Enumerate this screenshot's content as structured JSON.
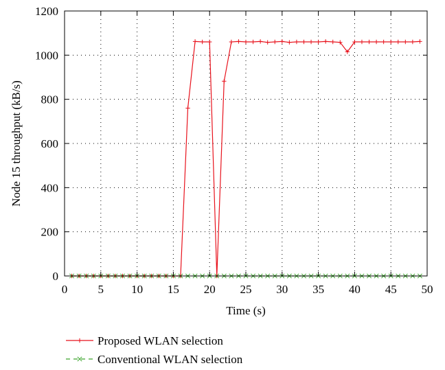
{
  "chart_data": {
    "type": "line",
    "xlabel": "Time (s)",
    "ylabel": "Node 15 throughput (kB/s)",
    "xlim": [
      0,
      50
    ],
    "ylim": [
      0,
      1200
    ],
    "xticks": [
      0,
      5,
      10,
      15,
      20,
      25,
      30,
      35,
      40,
      45,
      50
    ],
    "yticks": [
      0,
      200,
      400,
      600,
      800,
      1000,
      1200
    ],
    "grid": "dotted",
    "legend_position": "below",
    "x": [
      1,
      2,
      3,
      4,
      5,
      6,
      7,
      8,
      9,
      10,
      11,
      12,
      13,
      14,
      15,
      16,
      17,
      18,
      19,
      20,
      21,
      22,
      23,
      24,
      25,
      26,
      27,
      28,
      29,
      30,
      31,
      32,
      33,
      34,
      35,
      36,
      37,
      38,
      39,
      40,
      41,
      42,
      43,
      44,
      45,
      46,
      47,
      48,
      49
    ],
    "series": [
      {
        "name": "Proposed WLAN selection",
        "color": "#e8111b",
        "marker": "plus",
        "line": "solid",
        "values": [
          0,
          0,
          0,
          0,
          0,
          0,
          0,
          0,
          0,
          0,
          0,
          0,
          0,
          0,
          0,
          0,
          760,
          1062,
          1060,
          1060,
          0,
          882,
          1060,
          1062,
          1060,
          1060,
          1062,
          1058,
          1060,
          1062,
          1058,
          1060,
          1060,
          1060,
          1060,
          1062,
          1060,
          1058,
          1015,
          1060,
          1060,
          1060,
          1060,
          1060,
          1060,
          1060,
          1060,
          1060,
          1062
        ]
      },
      {
        "name": "Conventional WLAN selection",
        "color": "#3aa42b",
        "marker": "x",
        "line": "dashed",
        "values": [
          0,
          0,
          0,
          0,
          0,
          0,
          0,
          0,
          0,
          0,
          0,
          0,
          0,
          0,
          0,
          0,
          0,
          0,
          0,
          0,
          0,
          0,
          0,
          0,
          0,
          0,
          0,
          0,
          0,
          0,
          0,
          0,
          0,
          0,
          0,
          0,
          0,
          0,
          0,
          0,
          0,
          0,
          0,
          0,
          0,
          0,
          0,
          0,
          0
        ]
      }
    ]
  }
}
